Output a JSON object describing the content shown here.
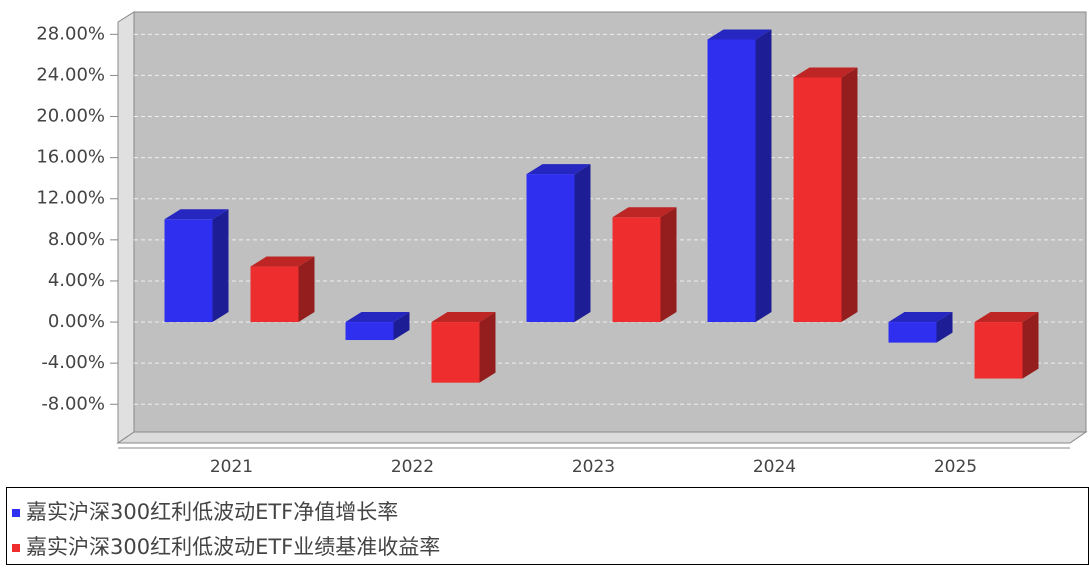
{
  "chart_data": {
    "type": "bar3d",
    "categories": [
      "2021",
      "2022",
      "2023",
      "2024",
      "2025"
    ],
    "series": [
      {
        "name": "嘉实沪深300红利低波动ETF净值增长率",
        "color": "#2f2ff0",
        "values": [
          10.0,
          -1.75,
          14.4,
          27.5,
          -2.0
        ]
      },
      {
        "name": "嘉实沪深300红利低波动ETF业绩基准收益率",
        "color": "#ee2e2e",
        "values": [
          5.4,
          -5.9,
          10.2,
          23.8,
          -5.5
        ]
      }
    ],
    "ylim": [
      -10.7,
      29.2
    ],
    "yticks": [
      {
        "value": -8,
        "label": "-8.00%"
      },
      {
        "value": -4,
        "label": "-4.00%"
      },
      {
        "value": 0,
        "label": "0.00%"
      },
      {
        "value": 4,
        "label": "4.00%"
      },
      {
        "value": 8,
        "label": "8.00%"
      },
      {
        "value": 12,
        "label": "12.00%"
      },
      {
        "value": 16,
        "label": "16.00%"
      },
      {
        "value": 20,
        "label": "20.00%"
      },
      {
        "value": 24,
        "label": "24.00%"
      },
      {
        "value": 28,
        "label": "28.00%"
      }
    ],
    "grid": true
  }
}
